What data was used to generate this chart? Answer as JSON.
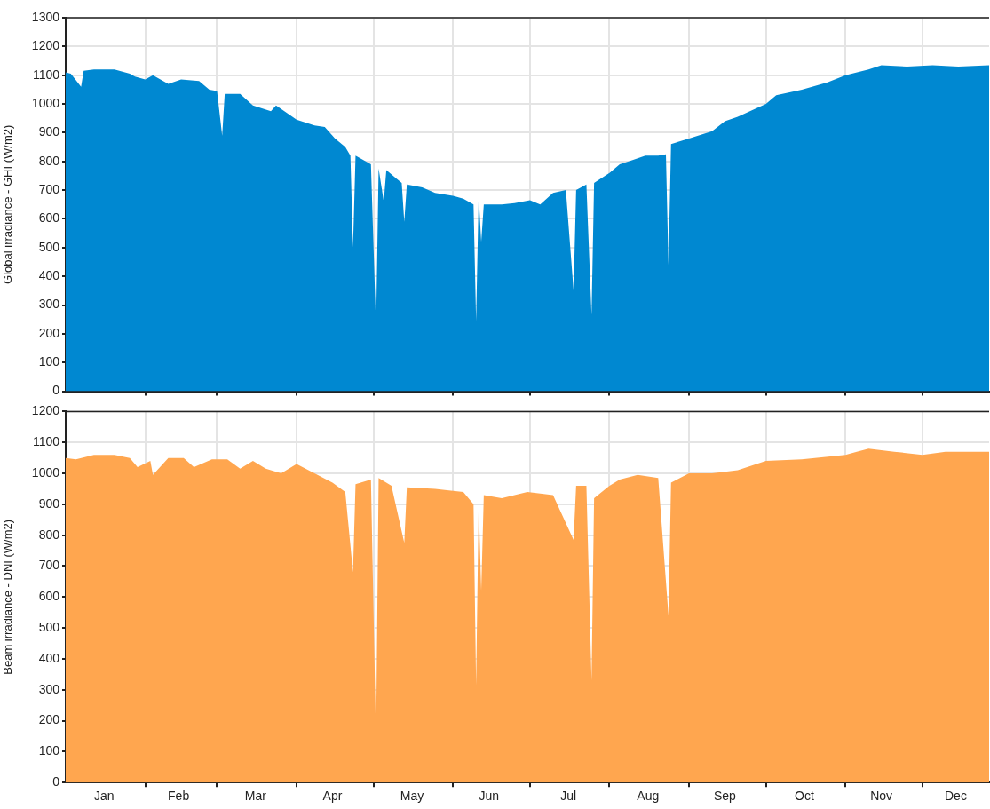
{
  "chart_data": [
    {
      "type": "area",
      "ylabel": "Global irradiance - GHI (W/m2)",
      "tick_labels": "y",
      "grid": true,
      "xlim": [
        "--01-01",
        "--12-27"
      ],
      "xticks": [
        {
          "value": "--02-01",
          "label": null
        },
        {
          "value": "--03-01",
          "label": null
        },
        {
          "value": "--04-01",
          "label": null
        },
        {
          "value": "--05-01",
          "label": null
        },
        {
          "value": "--06-01",
          "label": null
        },
        {
          "value": "--07-01",
          "label": null
        },
        {
          "value": "--08-01",
          "label": null
        },
        {
          "value": "--09-01",
          "label": null
        },
        {
          "value": "--10-01",
          "label": null
        },
        {
          "value": "--11-01",
          "label": null
        },
        {
          "value": "--12-01",
          "label": null
        }
      ],
      "ylim": [
        0,
        1300
      ],
      "yticks": [
        0,
        100,
        200,
        300,
        400,
        500,
        600,
        700,
        800,
        900,
        1000,
        1100,
        1200,
        1300
      ],
      "series": [
        {
          "color": "#0088d1",
          "x": [
            "--01-01",
            "--01-03",
            "--01-07",
            "--01-08",
            "--01-12",
            "--01-20",
            "--01-26",
            "--01-28",
            "--02-01",
            "--02-04",
            "--02-10",
            "--02-15",
            "--02-22",
            "--02-26",
            "--03-01",
            "--03-03",
            "--03-04",
            "--03-10",
            "--03-15",
            "--03-22",
            "--03-24",
            "--04-01",
            "--04-08",
            "--04-12",
            "--04-16",
            "--04-20",
            "--04-22",
            "--04-23",
            "--04-24",
            "--04-30",
            "--05-02",
            "--05-03",
            "--05-05",
            "--05-06",
            "--05-10",
            "--05-12",
            "--05-13",
            "--05-14",
            "--05-20",
            "--05-25",
            "--06-01",
            "--06-05",
            "--06-09",
            "--06-10",
            "--06-11",
            "--06-12",
            "--06-13",
            "--06-20",
            "--06-25",
            "--07-01",
            "--07-05",
            "--07-10",
            "--07-15",
            "--07-18",
            "--07-19",
            "--07-23",
            "--07-25",
            "--07-26",
            "--08-01",
            "--08-05",
            "--08-10",
            "--08-15",
            "--08-20",
            "--08-23",
            "--08-24",
            "--08-25",
            "--09-01",
            "--09-10",
            "--09-15",
            "--09-20",
            "--10-01",
            "--10-05",
            "--10-15",
            "--10-25",
            "--11-01",
            "--11-10",
            "--11-15",
            "--11-25",
            "--12-05",
            "--12-15",
            "--12-27"
          ],
          "values": [
            1110,
            1105,
            1060,
            1115,
            1120,
            1120,
            1105,
            1095,
            1085,
            1100,
            1070,
            1085,
            1080,
            1050,
            1045,
            890,
            1035,
            1035,
            995,
            975,
            995,
            945,
            925,
            920,
            880,
            850,
            820,
            500,
            820,
            790,
            225,
            775,
            660,
            770,
            740,
            725,
            590,
            720,
            710,
            690,
            680,
            670,
            650,
            245,
            680,
            520,
            650,
            650,
            655,
            665,
            650,
            690,
            700,
            350,
            700,
            720,
            265,
            725,
            760,
            790,
            805,
            820,
            820,
            825,
            440,
            860,
            880,
            905,
            940,
            955,
            1000,
            1030,
            1050,
            1075,
            1100,
            1120,
            1135,
            1130,
            1135,
            1130,
            1135
          ]
        }
      ]
    },
    {
      "type": "area",
      "ylabel": "Beam irradiance - DNI (W/m2)",
      "grid": true,
      "xlim": [
        "--01-01",
        "--12-27"
      ],
      "xticks": [
        {
          "value": "--01-16",
          "label": "Jan"
        },
        {
          "value": "--02-01",
          "label": null
        },
        {
          "value": "--02-14",
          "label": "Feb"
        },
        {
          "value": "--03-01",
          "label": null
        },
        {
          "value": "--03-16",
          "label": "Mar"
        },
        {
          "value": "--04-01",
          "label": null
        },
        {
          "value": "--04-15",
          "label": "Apr"
        },
        {
          "value": "--05-01",
          "label": null
        },
        {
          "value": "--05-16",
          "label": "May"
        },
        {
          "value": "--06-01",
          "label": null
        },
        {
          "value": "--06-15",
          "label": "Jun"
        },
        {
          "value": "--07-01",
          "label": null
        },
        {
          "value": "--07-16",
          "label": "Jul"
        },
        {
          "value": "--08-01",
          "label": null
        },
        {
          "value": "--08-16",
          "label": "Aug"
        },
        {
          "value": "--09-01",
          "label": null
        },
        {
          "value": "--09-15",
          "label": "Sep"
        },
        {
          "value": "--10-01",
          "label": null
        },
        {
          "value": "--10-16",
          "label": "Oct"
        },
        {
          "value": "--11-01",
          "label": null
        },
        {
          "value": "--11-15",
          "label": "Nov"
        },
        {
          "value": "--12-01",
          "label": null
        },
        {
          "value": "--12-14",
          "label": "Dec"
        }
      ],
      "ylim": [
        0,
        1200
      ],
      "yticks": [
        0,
        100,
        200,
        300,
        400,
        500,
        600,
        700,
        800,
        900,
        1000,
        1100,
        1200
      ],
      "series": [
        {
          "color": "#ffa64f",
          "x": [
            "--01-01",
            "--01-05",
            "--01-12",
            "--01-20",
            "--01-26",
            "--01-29",
            "--02-03",
            "--02-04",
            "--02-10",
            "--02-16",
            "--02-20",
            "--02-27",
            "--03-05",
            "--03-10",
            "--03-15",
            "--03-20",
            "--03-26",
            "--04-01",
            "--04-08",
            "--04-15",
            "--04-20",
            "--04-23",
            "--04-24",
            "--04-30",
            "--05-02",
            "--05-03",
            "--05-08",
            "--05-13",
            "--05-14",
            "--05-25",
            "--06-05",
            "--06-09",
            "--06-10",
            "--06-11",
            "--06-12",
            "--06-13",
            "--06-20",
            "--06-30",
            "--07-10",
            "--07-18",
            "--07-19",
            "--07-23",
            "--07-25",
            "--07-26",
            "--08-01",
            "--08-05",
            "--08-12",
            "--08-20",
            "--08-24",
            "--08-25",
            "--09-01",
            "--09-10",
            "--09-20",
            "--10-01",
            "--10-15",
            "--11-01",
            "--11-10",
            "--11-20",
            "--12-01",
            "--12-10",
            "--12-27"
          ],
          "values": [
            1050,
            1045,
            1060,
            1060,
            1050,
            1020,
            1040,
            995,
            1050,
            1050,
            1020,
            1045,
            1045,
            1015,
            1040,
            1015,
            1000,
            1030,
            1000,
            970,
            940,
            680,
            965,
            980,
            140,
            985,
            960,
            775,
            955,
            950,
            940,
            900,
            315,
            900,
            620,
            930,
            920,
            940,
            930,
            785,
            960,
            960,
            330,
            920,
            960,
            980,
            995,
            985,
            540,
            970,
            1000,
            1000,
            1010,
            1040,
            1045,
            1060,
            1080,
            1070,
            1060,
            1070,
            1070
          ]
        }
      ]
    }
  ]
}
